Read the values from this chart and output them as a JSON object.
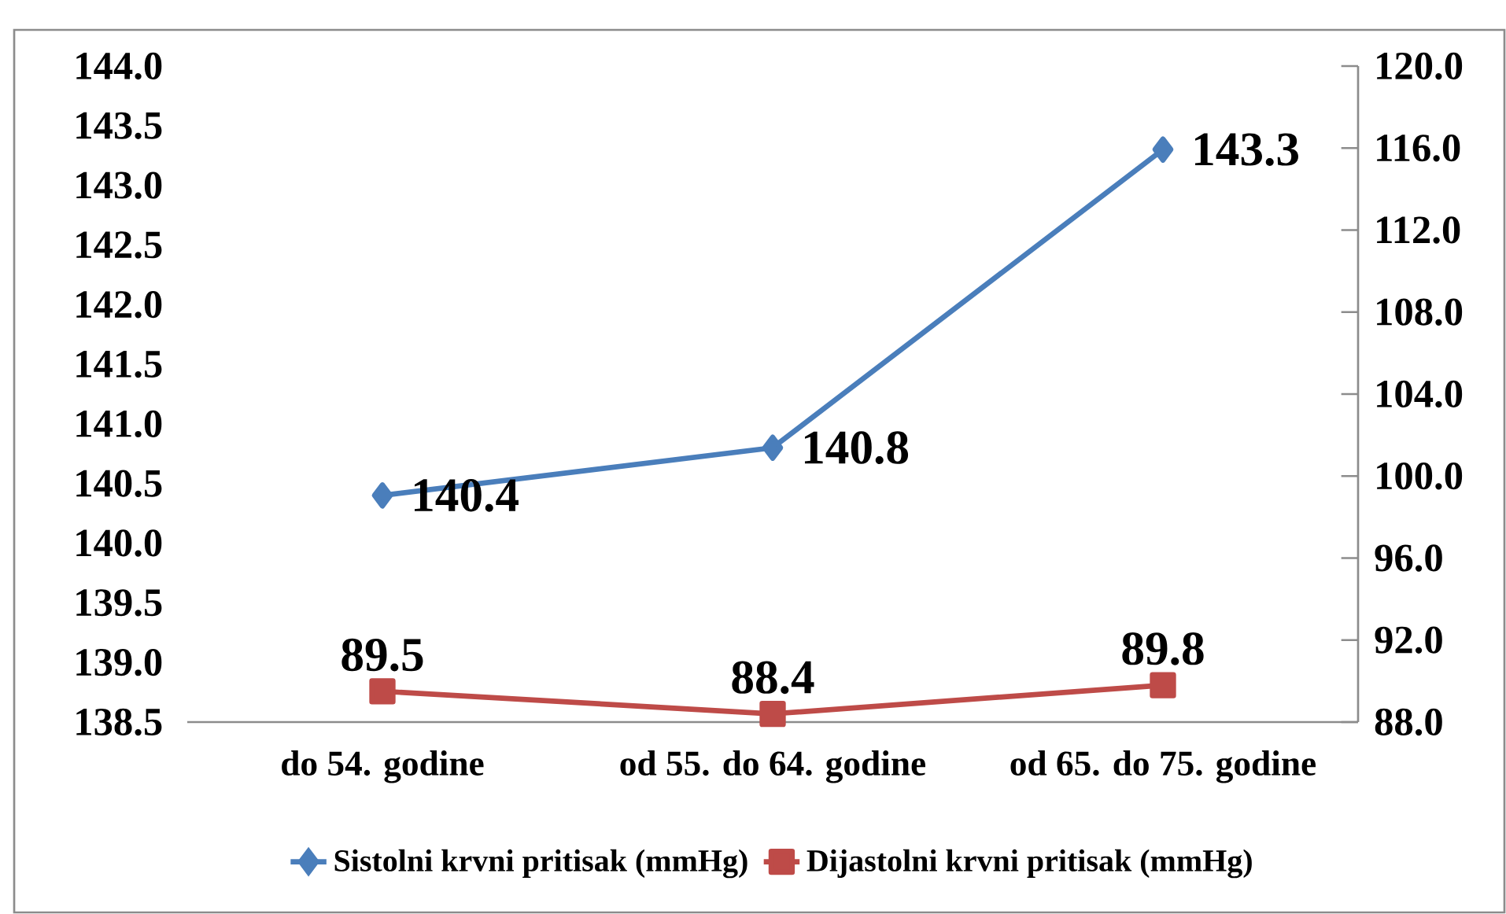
{
  "chart_data": {
    "type": "line",
    "categories": [
      "do 54. godine",
      "od 55. do 64. godine",
      "od 65. do 75. godine"
    ],
    "series": [
      {
        "name": "Sistolni krvni pritisak (mmHg)",
        "color": "#4a7ebb",
        "values": [
          140.4,
          140.8,
          143.3
        ],
        "marker": "diamond"
      },
      {
        "name": "Dijastolni krvni pritisak (mmHg)",
        "color": "#be4b48",
        "values": [
          89.5,
          88.4,
          89.8
        ],
        "marker": "square",
        "axis": "y2"
      }
    ],
    "ylim": [
      138.5,
      144.0
    ],
    "yticks": [
      {
        "value": 138.5,
        "label": "138.5"
      },
      {
        "value": 139,
        "label": "139.0"
      },
      {
        "value": 139.5,
        "label": "139.5"
      },
      {
        "value": 140,
        "label": "140.0"
      },
      {
        "value": 140.5,
        "label": "140.5"
      },
      {
        "value": 141,
        "label": "141.0"
      },
      {
        "value": 141.5,
        "label": "141.5"
      },
      {
        "value": 142,
        "label": "142.0"
      },
      {
        "value": 142.5,
        "label": "142.5"
      },
      {
        "value": 143,
        "label": "143.0"
      },
      {
        "value": 143.5,
        "label": "143.5"
      },
      {
        "value": 144,
        "label": "144.0"
      }
    ],
    "y2lim": [
      88.0,
      120.0
    ],
    "y2ticks": [
      {
        "value": 88,
        "label": "88.0"
      },
      {
        "value": 92,
        "label": "92.0"
      },
      {
        "value": 96,
        "label": "96.0"
      },
      {
        "value": 100,
        "label": "100.0"
      },
      {
        "value": 104,
        "label": "104.0"
      },
      {
        "value": 108,
        "label": "108.0"
      },
      {
        "value": 112,
        "label": "112.0"
      },
      {
        "value": 116,
        "label": "116.0"
      },
      {
        "value": 120,
        "label": "120.0"
      }
    ],
    "data_labels": true,
    "grid": false,
    "legend": "bottom",
    "line_style": "solid"
  }
}
